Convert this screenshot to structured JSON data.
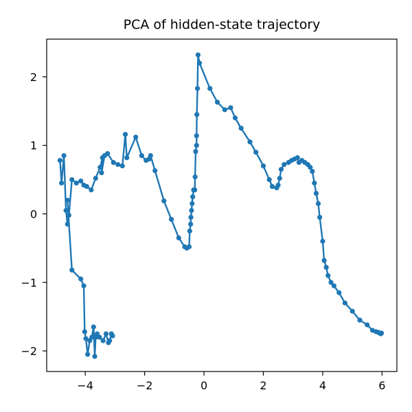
{
  "chart_data": {
    "type": "line",
    "title": "PCA of hidden-state trajectory",
    "xlabel": "",
    "ylabel": "",
    "xlim": [
      -5.3,
      6.5
    ],
    "ylim": [
      -2.3,
      2.55
    ],
    "xticks": [
      -4,
      -2,
      0,
      2,
      4,
      6
    ],
    "xtick_labels": [
      "−4",
      "−2",
      "0",
      "2",
      "4",
      "6"
    ],
    "yticks": [
      -2,
      -1,
      0,
      1,
      2
    ],
    "ytick_labels": [
      "−2",
      "−1",
      "0",
      "1",
      "2"
    ],
    "grid": false,
    "legend": "none",
    "color": "#1f77b4",
    "series": [
      {
        "x": [
          -4.85,
          -4.8,
          -4.72,
          -4.65,
          -4.6,
          -4.55,
          -4.45,
          -4.3,
          -4.15,
          -4.05,
          -3.95,
          -3.8,
          -3.65,
          -3.5,
          -3.42,
          -3.45,
          -3.35,
          -3.25,
          -3.05,
          -2.9,
          -2.75,
          -2.65,
          -2.6,
          -2.3,
          -2.1,
          -1.95,
          -1.85,
          -1.8,
          -1.65,
          -1.35,
          -1.1,
          -0.85,
          -0.65,
          -0.58,
          -0.5,
          -0.48,
          -0.45,
          -0.44,
          -0.42,
          -0.4,
          -0.38,
          -0.35,
          -0.33,
          -0.31,
          -0.3,
          -0.28,
          -0.25,
          -0.25,
          -0.24,
          -0.22,
          -0.2,
          -0.15,
          0.2,
          0.45,
          0.7,
          0.9,
          1.05,
          1.25,
          1.55,
          1.75,
          2.0,
          2.2,
          2.3,
          2.45,
          2.5,
          2.55,
          2.6,
          2.7,
          2.85,
          2.95,
          3.05,
          3.15,
          3.2,
          3.3,
          3.4,
          3.5,
          3.58,
          3.65,
          3.72,
          3.78,
          3.85,
          3.9,
          4.0,
          4.05,
          4.12,
          4.18,
          4.28,
          4.38,
          4.55,
          4.75,
          5.0,
          5.25,
          5.5,
          5.68,
          5.8,
          5.88,
          5.92,
          5.96,
          5.98
        ],
        "y": [
          0.78,
          0.45,
          0.85,
          0.05,
          -0.15,
          -0.02,
          0.5,
          0.45,
          0.48,
          0.42,
          0.4,
          0.35,
          0.52,
          0.68,
          0.82,
          0.6,
          0.85,
          0.88,
          0.75,
          0.72,
          0.7,
          1.16,
          0.82,
          1.12,
          0.85,
          0.78,
          0.8,
          0.85,
          0.63,
          0.19,
          -0.08,
          -0.35,
          -0.48,
          -0.5,
          -0.48,
          -0.25,
          -0.15,
          -0.05,
          0.05,
          0.15,
          0.25,
          0.35,
          0.35,
          0.35,
          0.54,
          0.91,
          1.0,
          1.14,
          1.45,
          1.83,
          2.32,
          2.2,
          1.83,
          1.63,
          1.52,
          1.55,
          1.4,
          1.25,
          1.05,
          0.9,
          0.7,
          0.5,
          0.4,
          0.38,
          0.42,
          0.52,
          0.65,
          0.72,
          0.75,
          0.78,
          0.8,
          0.82,
          0.75,
          0.78,
          0.75,
          0.72,
          0.68,
          0.62,
          0.45,
          0.3,
          0.15,
          -0.05,
          -0.4,
          -0.68,
          -0.78,
          -0.9,
          -1.0,
          -1.05,
          -1.15,
          -1.3,
          -1.42,
          -1.55,
          -1.62,
          -1.7,
          -1.72,
          -1.73,
          -1.74,
          -1.75,
          -1.74
        ]
      },
      {
        "x": [
          -4.6,
          -4.45,
          -4.15,
          -4.05,
          -4.02,
          -3.98,
          -3.92,
          -3.85,
          -3.78,
          -3.72,
          -3.68,
          -3.65,
          -3.6,
          -3.52,
          -3.4,
          -3.3,
          -3.22,
          -3.18,
          -3.12,
          -3.08
        ],
        "y": [
          0.2,
          -0.82,
          -0.95,
          -1.05,
          -1.72,
          -1.82,
          -2.05,
          -1.85,
          -1.8,
          -1.65,
          -2.08,
          -1.8,
          -1.75,
          -1.8,
          -1.85,
          -1.75,
          -1.88,
          -1.85,
          -1.75,
          -1.78
        ]
      }
    ]
  }
}
